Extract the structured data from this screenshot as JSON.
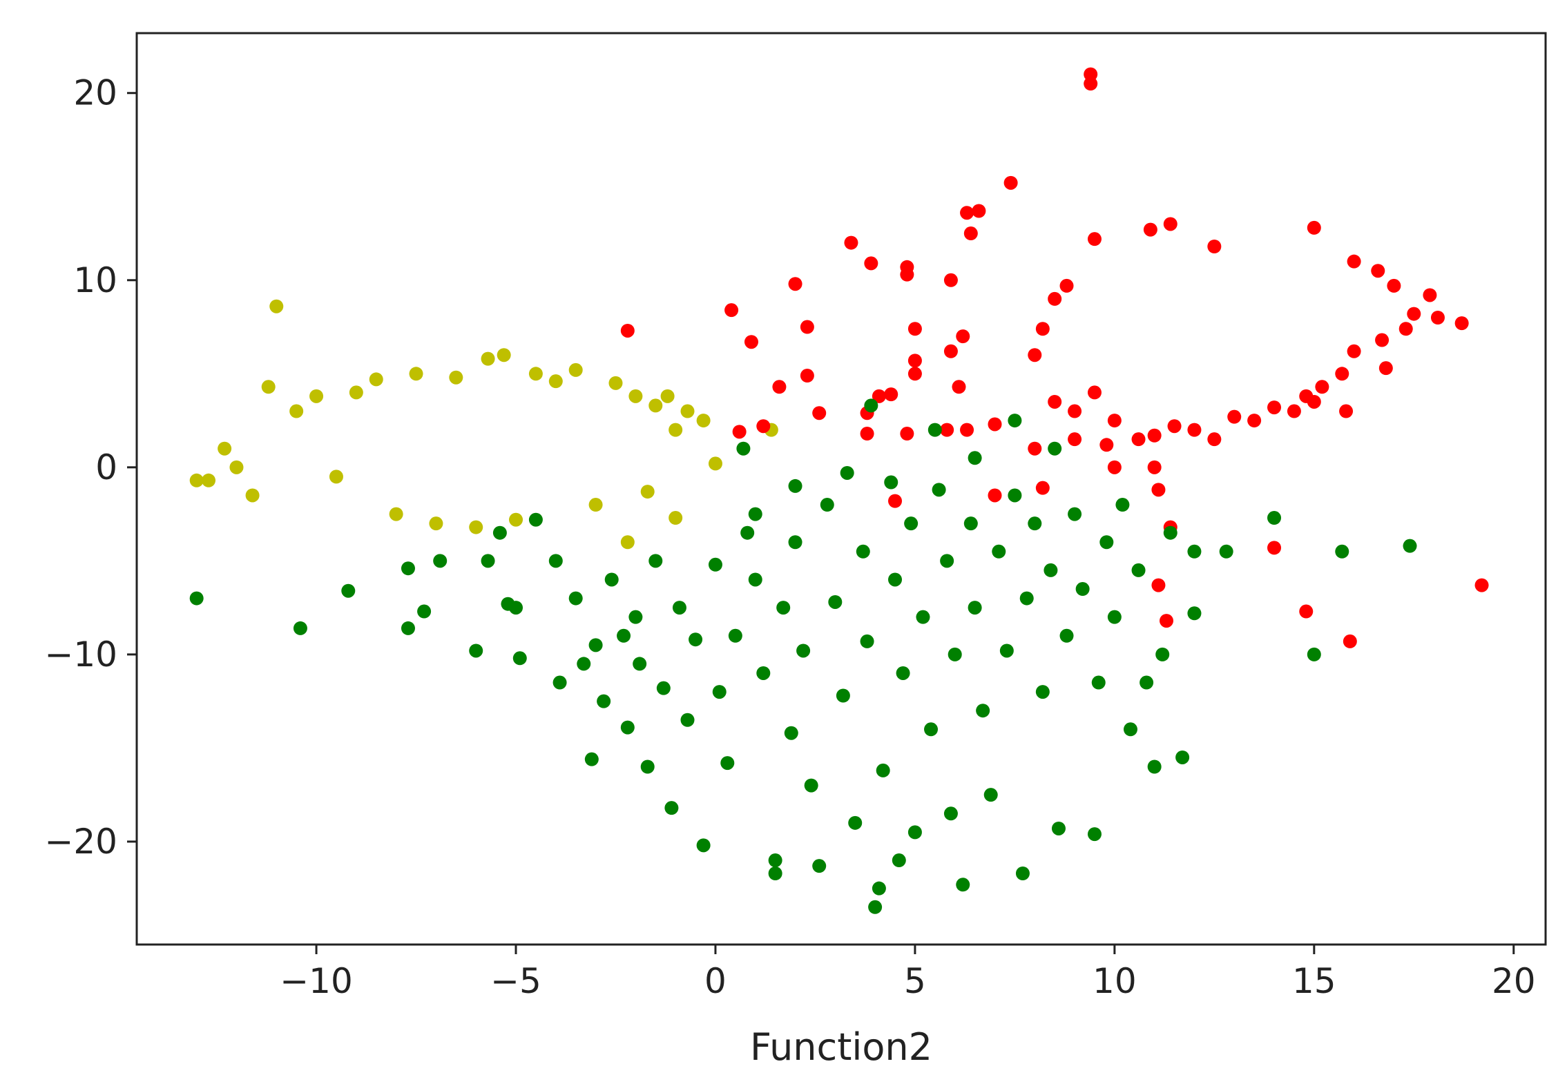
{
  "chart_data": {
    "type": "scatter",
    "title": "",
    "xlabel": "Function2",
    "ylabel": "",
    "xlim": [
      -14.5,
      20.8
    ],
    "ylim": [
      -25.5,
      23.2
    ],
    "xticks": [
      -10,
      -5,
      0,
      5,
      10,
      15,
      20
    ],
    "yticks": [
      -20,
      -10,
      0,
      10,
      20
    ],
    "xtick_labels": [
      "−10",
      "−5",
      "0",
      "5",
      "10",
      "15",
      "20"
    ],
    "ytick_labels": [
      "−20",
      "−10",
      "0",
      "10",
      "20"
    ],
    "grid": false,
    "legend": "none",
    "series": [
      {
        "color": "#bfbf00",
        "points": [
          [
            -13.0,
            -0.7
          ],
          [
            -12.7,
            -0.7
          ],
          [
            -12.3,
            1.0
          ],
          [
            -12.0,
            0.0
          ],
          [
            -11.6,
            -1.5
          ],
          [
            -11.2,
            4.3
          ],
          [
            -11.0,
            8.6
          ],
          [
            -10.5,
            3.0
          ],
          [
            -10.0,
            3.8
          ],
          [
            -9.5,
            -0.5
          ],
          [
            -9.0,
            4.0
          ],
          [
            -8.5,
            4.7
          ],
          [
            -8.0,
            -2.5
          ],
          [
            -7.5,
            5.0
          ],
          [
            -7.0,
            -3.0
          ],
          [
            -6.5,
            4.8
          ],
          [
            -6.0,
            -3.2
          ],
          [
            -5.7,
            5.8
          ],
          [
            -5.3,
            6.0
          ],
          [
            -5.0,
            -2.8
          ],
          [
            -4.5,
            5.0
          ],
          [
            -4.0,
            4.6
          ],
          [
            -3.5,
            5.2
          ],
          [
            -3.0,
            -2.0
          ],
          [
            -2.5,
            4.5
          ],
          [
            -2.0,
            3.8
          ],
          [
            -1.7,
            -1.3
          ],
          [
            -1.5,
            3.3
          ],
          [
            -1.2,
            3.8
          ],
          [
            -1.0,
            2.0
          ],
          [
            -0.7,
            3.0
          ],
          [
            -0.3,
            2.5
          ],
          [
            0.0,
            0.2
          ],
          [
            -2.2,
            -4.0
          ],
          [
            -1.0,
            -2.7
          ],
          [
            1.4,
            2.0
          ]
        ]
      },
      {
        "color": "#ff0000",
        "points": [
          [
            9.4,
            21.0
          ],
          [
            9.4,
            20.5
          ],
          [
            7.4,
            15.2
          ],
          [
            6.3,
            13.6
          ],
          [
            6.6,
            13.7
          ],
          [
            6.4,
            12.5
          ],
          [
            3.4,
            12.0
          ],
          [
            4.8,
            10.7
          ],
          [
            4.8,
            10.3
          ],
          [
            3.9,
            10.9
          ],
          [
            5.9,
            10.0
          ],
          [
            2.0,
            9.8
          ],
          [
            0.4,
            8.4
          ],
          [
            2.3,
            7.5
          ],
          [
            -2.2,
            7.3
          ],
          [
            0.9,
            6.7
          ],
          [
            5.0,
            7.4
          ],
          [
            6.2,
            7.0
          ],
          [
            5.9,
            6.2
          ],
          [
            5.0,
            5.7
          ],
          [
            5.0,
            5.0
          ],
          [
            2.3,
            4.9
          ],
          [
            1.6,
            4.3
          ],
          [
            6.1,
            4.3
          ],
          [
            4.4,
            3.9
          ],
          [
            4.1,
            3.8
          ],
          [
            7.0,
            2.3
          ],
          [
            2.6,
            2.9
          ],
          [
            3.8,
            2.9
          ],
          [
            1.2,
            2.2
          ],
          [
            0.6,
            1.9
          ],
          [
            3.8,
            1.8
          ],
          [
            5.8,
            2.0
          ],
          [
            6.3,
            2.0
          ],
          [
            4.8,
            1.8
          ],
          [
            8.0,
            1.0
          ],
          [
            10.0,
            0.0
          ],
          [
            10.6,
            1.5
          ],
          [
            11.0,
            0.0
          ],
          [
            7.0,
            -1.5
          ],
          [
            4.5,
            -1.8
          ],
          [
            8.2,
            -1.1
          ],
          [
            11.1,
            -1.2
          ],
          [
            11.4,
            -3.2
          ],
          [
            11.1,
            -6.3
          ],
          [
            11.3,
            -8.2
          ],
          [
            14.0,
            -4.3
          ],
          [
            14.8,
            -7.7
          ],
          [
            15.9,
            -9.3
          ],
          [
            19.2,
            -6.3
          ],
          [
            9.5,
            12.2
          ],
          [
            10.9,
            12.7
          ],
          [
            11.4,
            13.0
          ],
          [
            12.5,
            11.8
          ],
          [
            15.0,
            12.8
          ],
          [
            16.0,
            11.0
          ],
          [
            16.6,
            10.5
          ],
          [
            17.0,
            9.7
          ],
          [
            17.5,
            8.2
          ],
          [
            17.9,
            9.2
          ],
          [
            18.1,
            8.0
          ],
          [
            18.7,
            7.7
          ],
          [
            17.3,
            7.4
          ],
          [
            16.7,
            6.8
          ],
          [
            16.8,
            5.3
          ],
          [
            16.0,
            6.2
          ],
          [
            15.7,
            5.0
          ],
          [
            15.2,
            4.3
          ],
          [
            14.8,
            3.8
          ],
          [
            14.5,
            3.0
          ],
          [
            13.0,
            2.7
          ],
          [
            12.0,
            2.0
          ],
          [
            11.0,
            1.7
          ],
          [
            8.8,
            9.7
          ],
          [
            8.5,
            9.0
          ],
          [
            8.2,
            7.4
          ],
          [
            8.0,
            6.0
          ],
          [
            8.5,
            3.5
          ],
          [
            9.0,
            3.0
          ],
          [
            9.5,
            4.0
          ],
          [
            10.0,
            2.5
          ],
          [
            11.5,
            2.2
          ],
          [
            13.5,
            2.5
          ],
          [
            14.0,
            3.2
          ],
          [
            15.0,
            3.5
          ],
          [
            15.8,
            3.0
          ],
          [
            9.0,
            1.5
          ],
          [
            9.8,
            1.2
          ],
          [
            12.5,
            1.5
          ]
        ]
      },
      {
        "color": "#008000",
        "points": [
          [
            -13.0,
            -7.0
          ],
          [
            -10.4,
            -8.6
          ],
          [
            -9.2,
            -6.6
          ],
          [
            -7.7,
            -5.4
          ],
          [
            -7.3,
            -7.7
          ],
          [
            -7.7,
            -8.6
          ],
          [
            -6.9,
            -5.0
          ],
          [
            -6.0,
            -9.8
          ],
          [
            -5.7,
            -5.0
          ],
          [
            -5.4,
            -3.5
          ],
          [
            -5.2,
            -7.3
          ],
          [
            -5.0,
            -7.5
          ],
          [
            -4.9,
            -10.2
          ],
          [
            -4.5,
            -2.8
          ],
          [
            -4.0,
            -5.0
          ],
          [
            -3.9,
            -11.5
          ],
          [
            -3.5,
            -7.0
          ],
          [
            -3.3,
            -10.5
          ],
          [
            -3.1,
            -15.6
          ],
          [
            -3.0,
            -9.5
          ],
          [
            -2.8,
            -12.5
          ],
          [
            -2.6,
            -6.0
          ],
          [
            -2.3,
            -9.0
          ],
          [
            -2.2,
            -13.9
          ],
          [
            -2.0,
            -8.0
          ],
          [
            -1.9,
            -10.5
          ],
          [
            -1.7,
            -16.0
          ],
          [
            -1.5,
            -5.0
          ],
          [
            -1.3,
            -11.8
          ],
          [
            -1.1,
            -18.2
          ],
          [
            -0.9,
            -7.5
          ],
          [
            -0.7,
            -13.5
          ],
          [
            -0.5,
            -9.2
          ],
          [
            -0.3,
            -20.2
          ],
          [
            0.0,
            -5.2
          ],
          [
            0.1,
            -12.0
          ],
          [
            0.3,
            -15.8
          ],
          [
            0.5,
            -9.0
          ],
          [
            0.7,
            1.0
          ],
          [
            0.8,
            -3.5
          ],
          [
            1.0,
            -6.0
          ],
          [
            1.2,
            -11.0
          ],
          [
            1.5,
            -21.7
          ],
          [
            1.5,
            -21.0
          ],
          [
            1.7,
            -7.5
          ],
          [
            1.9,
            -14.2
          ],
          [
            2.0,
            -4.0
          ],
          [
            2.2,
            -9.8
          ],
          [
            2.4,
            -17.0
          ],
          [
            2.6,
            -21.3
          ],
          [
            2.8,
            -2.0
          ],
          [
            3.0,
            -7.2
          ],
          [
            3.2,
            -12.2
          ],
          [
            3.3,
            -0.3
          ],
          [
            3.5,
            -19.0
          ],
          [
            3.7,
            -4.5
          ],
          [
            3.8,
            -9.3
          ],
          [
            3.9,
            3.3
          ],
          [
            4.0,
            -23.5
          ],
          [
            4.1,
            -22.5
          ],
          [
            4.2,
            -16.2
          ],
          [
            4.4,
            -0.8
          ],
          [
            4.5,
            -6.0
          ],
          [
            4.6,
            -21.0
          ],
          [
            4.7,
            -11.0
          ],
          [
            4.9,
            -3.0
          ],
          [
            5.0,
            -19.5
          ],
          [
            5.2,
            -8.0
          ],
          [
            5.4,
            -14.0
          ],
          [
            5.6,
            -1.2
          ],
          [
            5.8,
            -5.0
          ],
          [
            5.9,
            -18.5
          ],
          [
            6.0,
            -10.0
          ],
          [
            6.2,
            -22.3
          ],
          [
            6.4,
            -3.0
          ],
          [
            6.5,
            -7.5
          ],
          [
            6.7,
            -13.0
          ],
          [
            6.9,
            -17.5
          ],
          [
            7.1,
            -4.5
          ],
          [
            7.3,
            -9.8
          ],
          [
            7.5,
            -1.5
          ],
          [
            7.7,
            -21.7
          ],
          [
            7.8,
            -7.0
          ],
          [
            8.0,
            -3.0
          ],
          [
            8.2,
            -12.0
          ],
          [
            8.4,
            -5.5
          ],
          [
            8.6,
            -19.3
          ],
          [
            8.8,
            -9.0
          ],
          [
            9.0,
            -2.5
          ],
          [
            9.2,
            -6.5
          ],
          [
            9.5,
            -19.6
          ],
          [
            9.6,
            -11.5
          ],
          [
            9.8,
            -4.0
          ],
          [
            10.0,
            -8.0
          ],
          [
            10.2,
            -2.0
          ],
          [
            10.4,
            -14.0
          ],
          [
            10.6,
            -5.5
          ],
          [
            10.8,
            -11.5
          ],
          [
            11.0,
            -16.0
          ],
          [
            11.2,
            -10.0
          ],
          [
            11.4,
            -3.5
          ],
          [
            11.7,
            -15.5
          ],
          [
            12.0,
            -7.8
          ],
          [
            12.0,
            -4.5
          ],
          [
            12.8,
            -4.5
          ],
          [
            14.0,
            -2.7
          ],
          [
            15.0,
            -10.0
          ],
          [
            15.7,
            -4.5
          ],
          [
            17.4,
            -4.2
          ],
          [
            8.5,
            1.0
          ],
          [
            7.5,
            2.5
          ],
          [
            6.5,
            0.5
          ],
          [
            5.5,
            2.0
          ],
          [
            2.0,
            -1.0
          ],
          [
            1.0,
            -2.5
          ]
        ]
      }
    ]
  }
}
